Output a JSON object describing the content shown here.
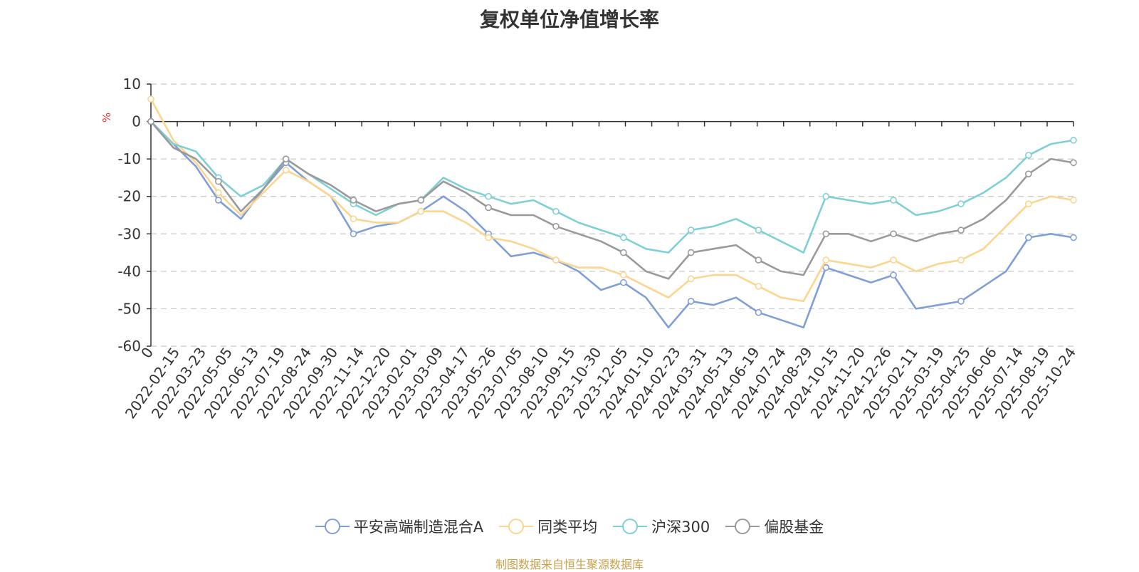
{
  "chart_data": {
    "type": "line",
    "title": "复权单位净值增长率",
    "ylabel": "%",
    "ylim": [
      -60,
      10
    ],
    "yticks": [
      10,
      0,
      -10,
      -20,
      -30,
      -40,
      -50,
      -60
    ],
    "grid": true,
    "legend_position": "bottom",
    "x_tick_labels": [
      "0",
      "2022-02-15",
      "2022-03-23",
      "2022-05-05",
      "2022-06-13",
      "2022-07-19",
      "2022-08-24",
      "2022-09-30",
      "2022-11-14",
      "2022-12-20",
      "2023-02-01",
      "2023-03-09",
      "2023-04-17",
      "2023-05-26",
      "2023-07-05",
      "2023-08-10",
      "2023-09-15",
      "2023-10-30",
      "2023-12-05",
      "2024-01-10",
      "2024-02-23",
      "2024-03-31",
      "2024-05-13",
      "2024-06-19",
      "2024-07-24",
      "2024-08-29",
      "2024-10-15",
      "2024-11-20",
      "2024-12-26",
      "2025-02-11",
      "2025-03-19",
      "2025-04-25",
      "2025-06-06",
      "2025-07-14",
      "2025-08-19",
      "2025-10-24"
    ],
    "series": [
      {
        "name": "平安高端制造混合A",
        "color": "#7f9fd6",
        "values": [
          0,
          -6,
          -12,
          -21,
          -26,
          -18,
          -11,
          -16,
          -20,
          -30,
          -28,
          -27,
          -24,
          -20,
          -24,
          -30,
          -36,
          -35,
          -37,
          -40,
          -45,
          -43,
          -47,
          -55,
          -48,
          -49,
          -47,
          -51,
          -53,
          -55,
          -39,
          -41,
          -43,
          -41,
          -50,
          -49,
          -48,
          -44,
          -40,
          -31,
          -30,
          -31
        ]
      },
      {
        "name": "同类平均",
        "color": "#fcd58e",
        "values": [
          6,
          -5,
          -11,
          -19,
          -25,
          -19,
          -13,
          -16,
          -20,
          -26,
          -27,
          -27,
          -24,
          -24,
          -27,
          -31,
          -32,
          -34,
          -37,
          -39,
          -39,
          -41,
          -44,
          -47,
          -42,
          -41,
          -41,
          -44,
          -47,
          -48,
          -37,
          -38,
          -39,
          -37,
          -40,
          -38,
          -37,
          -34,
          -28,
          -22,
          -20,
          -21
        ]
      },
      {
        "name": "沪深300",
        "color": "#7fd0d5",
        "values": [
          0,
          -6,
          -8,
          -15,
          -20,
          -17,
          -10,
          -14,
          -18,
          -22,
          -25,
          -22,
          -21,
          -15,
          -18,
          -20,
          -22,
          -21,
          -24,
          -27,
          -29,
          -31,
          -34,
          -35,
          -29,
          -28,
          -26,
          -29,
          -32,
          -35,
          -20,
          -21,
          -22,
          -21,
          -25,
          -24,
          -22,
          -19,
          -15,
          -9,
          -6,
          -5
        ]
      },
      {
        "name": "偏股基金",
        "color": "#9a9a9a",
        "values": [
          0,
          -7,
          -10,
          -16,
          -24,
          -18,
          -10,
          -14,
          -17,
          -21,
          -24,
          -22,
          -21,
          -16,
          -19,
          -23,
          -25,
          -25,
          -28,
          -30,
          -32,
          -35,
          -40,
          -42,
          -35,
          -34,
          -33,
          -37,
          -40,
          -41,
          -30,
          -30,
          -32,
          -30,
          -32,
          -30,
          -29,
          -26,
          -21,
          -14,
          -10,
          -11
        ]
      }
    ]
  },
  "legend": {
    "item_0": "平安高端制造混合A",
    "item_1": "同类平均",
    "item_2": "沪深300",
    "item_3": "偏股基金"
  },
  "footer": {
    "source": "制图数据来自恒生聚源数据库"
  }
}
